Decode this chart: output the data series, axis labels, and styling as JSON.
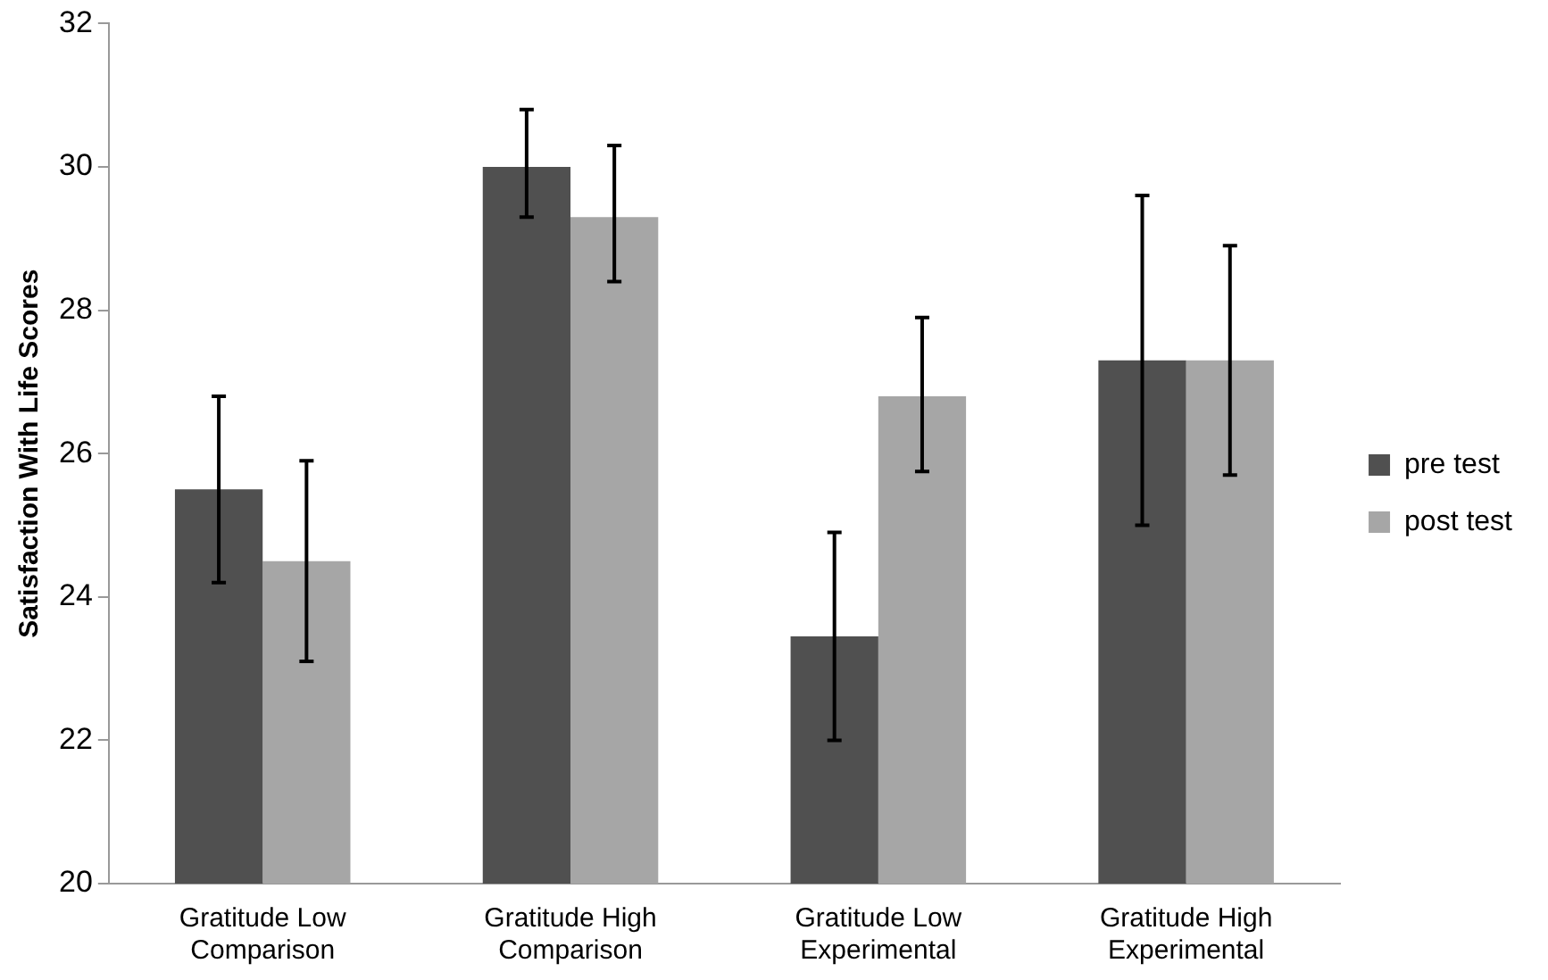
{
  "chart_data": {
    "type": "bar",
    "ylabel": "Satisfaction With Life Scores",
    "categories": [
      "Gratitude Low Comparison",
      "Gratitude High Comparison",
      "Gratitude Low Experimental",
      "Gratitude High Experimental"
    ],
    "series": [
      {
        "name": "pre test",
        "color": "#505050",
        "values": [
          25.5,
          30,
          23.45,
          27.3
        ],
        "errors": [
          [
            24.2,
            26.8
          ],
          [
            29.3,
            30.8
          ],
          [
            22.0,
            24.9
          ],
          [
            25.0,
            29.6
          ]
        ]
      },
      {
        "name": "post test",
        "color": "#a6a6a6",
        "values": [
          24.5,
          29.3,
          26.8,
          27.3
        ],
        "errors": [
          [
            23.1,
            25.9
          ],
          [
            28.4,
            30.3
          ],
          [
            25.75,
            27.9
          ],
          [
            25.7,
            28.9
          ]
        ]
      }
    ],
    "ylim": [
      20,
      32
    ],
    "yticks": [
      20,
      22,
      24,
      26,
      28,
      30,
      32
    ],
    "grid": false,
    "legend": "right"
  }
}
